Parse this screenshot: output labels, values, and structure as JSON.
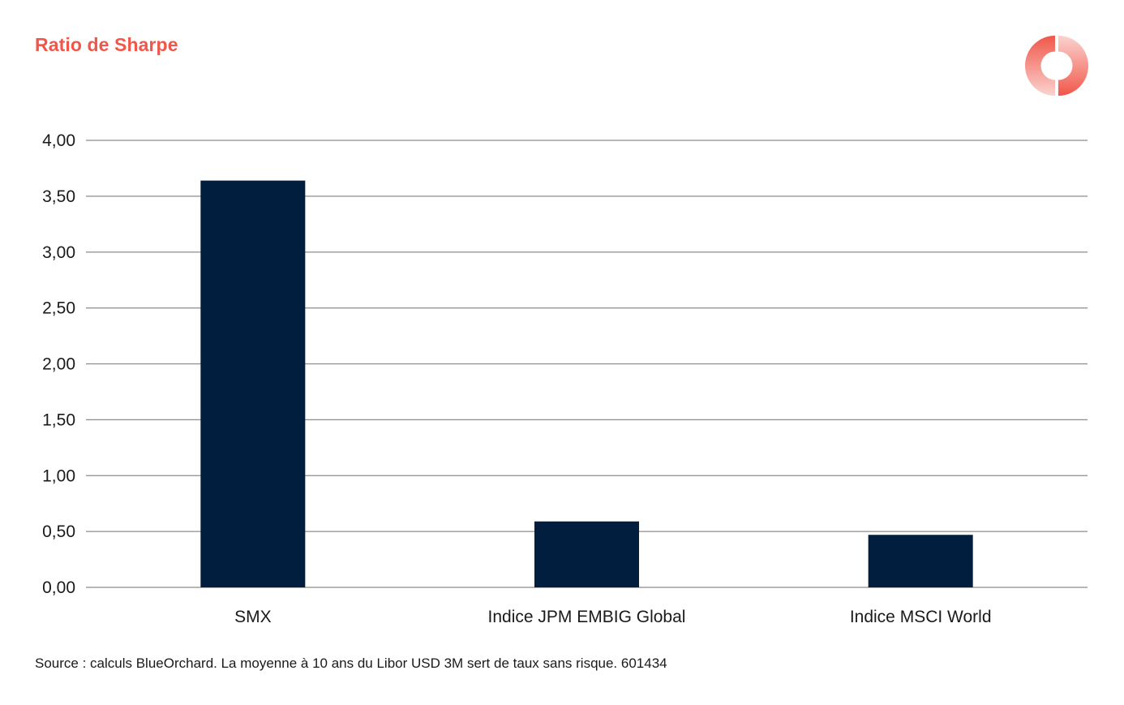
{
  "title": "Ratio de Sharpe",
  "source": "Source : calculs BlueOrchard. La moyenne à 10 ans du Libor USD 3M sert de taux sans risque. 601434",
  "logo": {
    "icon": "donut-logo-icon",
    "color_primary": "#f0574a",
    "color_light": "#fbd3cf"
  },
  "colors": {
    "bar": "#021e3f",
    "grid": "#8c8c8c",
    "title": "#f0574a"
  },
  "chart_data": {
    "type": "bar",
    "title": "Ratio de Sharpe",
    "xlabel": "",
    "ylabel": "",
    "categories": [
      "SMX",
      "Indice JPM EMBIG Global",
      "Indice MSCI World"
    ],
    "values": [
      3.64,
      0.59,
      0.47
    ],
    "ylim": [
      0,
      4
    ],
    "yticks": [
      0,
      0.5,
      1,
      1.5,
      2,
      2.5,
      3,
      3.5,
      4
    ],
    "ytick_labels": [
      "0,00",
      "0,50",
      "1,00",
      "1,50",
      "2,00",
      "2,50",
      "3,00",
      "3,50",
      "4,00"
    ],
    "grid": true,
    "legend": false
  }
}
